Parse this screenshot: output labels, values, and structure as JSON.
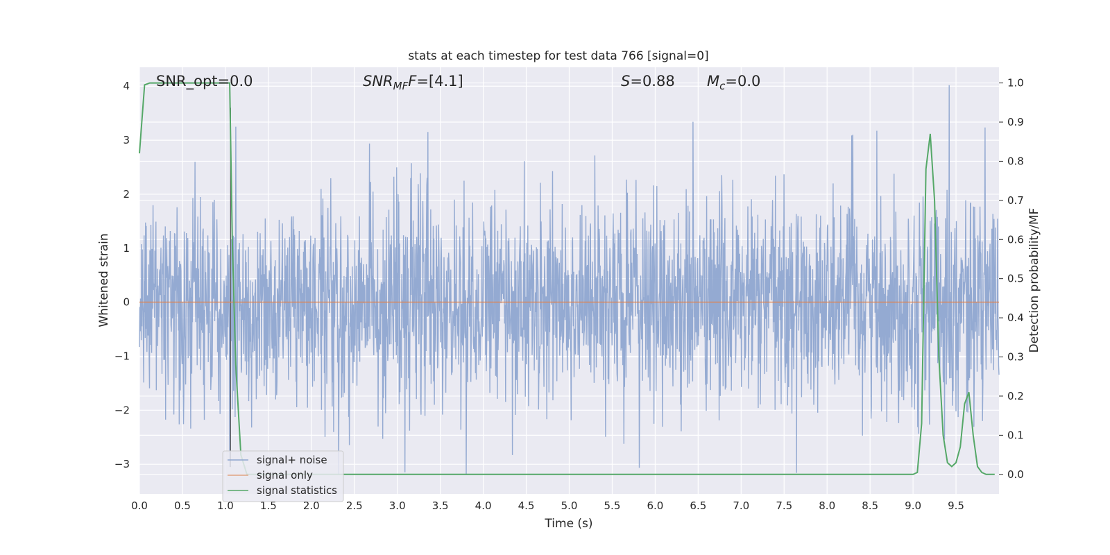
{
  "chart_data": {
    "type": "line",
    "title": "stats at each timestep for test data 766 [signal=0]",
    "xlabel": "Time (s)",
    "ylabel": "Whitened strain",
    "ylabel_right": "Detection probability/MF",
    "xlim": [
      0.0,
      10.0
    ],
    "ylim": [
      -3.55,
      4.35
    ],
    "ylim_right": [
      -0.05,
      1.04
    ],
    "x_ticks": [
      "0.0",
      "0.5",
      "1.0",
      "1.5",
      "2.0",
      "2.5",
      "3.0",
      "3.5",
      "4.0",
      "4.5",
      "5.0",
      "5.5",
      "6.0",
      "6.5",
      "7.0",
      "7.5",
      "8.0",
      "8.5",
      "9.0",
      "9.5"
    ],
    "y_ticks": [
      "4",
      "3",
      "2",
      "1",
      "0",
      "−1",
      "−2",
      "−3"
    ],
    "y_ticks_right": [
      "1.0",
      "0.9",
      "0.8",
      "0.7",
      "0.6",
      "0.5",
      "0.4",
      "0.3",
      "0.2",
      "0.1",
      "0.0"
    ],
    "grid": true,
    "legend_position": "lower-left",
    "annotations": {
      "snr_opt": "SNR_opt=0.0",
      "snr_mf_base": "SNR",
      "snr_mf_sub": "MF",
      "snr_mf_value": "=[4.1]",
      "s_symbol": "S",
      "s_value": "=0.88",
      "mc_symbol": "M",
      "mc_sub": "c",
      "mc_value": "=0.0"
    },
    "series": [
      {
        "name": "signal+ noise",
        "color": "#8fa6d0",
        "axis": "left",
        "description_stats": {
          "approx_amplitude_std": 0.95,
          "peak_max": 4.05,
          "peak_min": -3.2
        },
        "notable_peaks": [
          {
            "x": 1.05,
            "y": 3.6
          },
          {
            "x": 1.12,
            "y": 3.25
          },
          {
            "x": 9.42,
            "y": 4.02
          },
          {
            "x": 8.3,
            "y": 3.1
          },
          {
            "x": 3.8,
            "y": -3.2
          },
          {
            "x": 1.05,
            "y": -3.05
          }
        ]
      },
      {
        "name": "signal only",
        "color": "#dd8452",
        "axis": "left",
        "x": [
          0.0,
          10.0
        ],
        "y": [
          0.0,
          0.0
        ]
      },
      {
        "name": "signal statistics",
        "color": "#55a868",
        "axis": "right",
        "x": [
          0.0,
          0.06,
          0.12,
          0.25,
          0.5,
          0.75,
          1.0,
          1.05,
          1.08,
          1.12,
          1.18,
          1.25,
          2.0,
          4.0,
          6.0,
          8.0,
          9.0,
          9.05,
          9.1,
          9.15,
          9.2,
          9.25,
          9.3,
          9.35,
          9.4,
          9.45,
          9.5,
          9.55,
          9.6,
          9.65,
          9.7,
          9.75,
          9.8,
          9.85,
          9.9,
          9.95
        ],
        "y": [
          0.82,
          0.995,
          1.0,
          1.0,
          1.0,
          1.0,
          1.0,
          1.0,
          0.6,
          0.28,
          0.05,
          0.0,
          0.0,
          0.0,
          0.0,
          0.0,
          0.0,
          0.005,
          0.13,
          0.78,
          0.87,
          0.7,
          0.3,
          0.1,
          0.03,
          0.02,
          0.03,
          0.07,
          0.18,
          0.21,
          0.1,
          0.02,
          0.005,
          0.0,
          0.0,
          0.0
        ]
      }
    ]
  }
}
